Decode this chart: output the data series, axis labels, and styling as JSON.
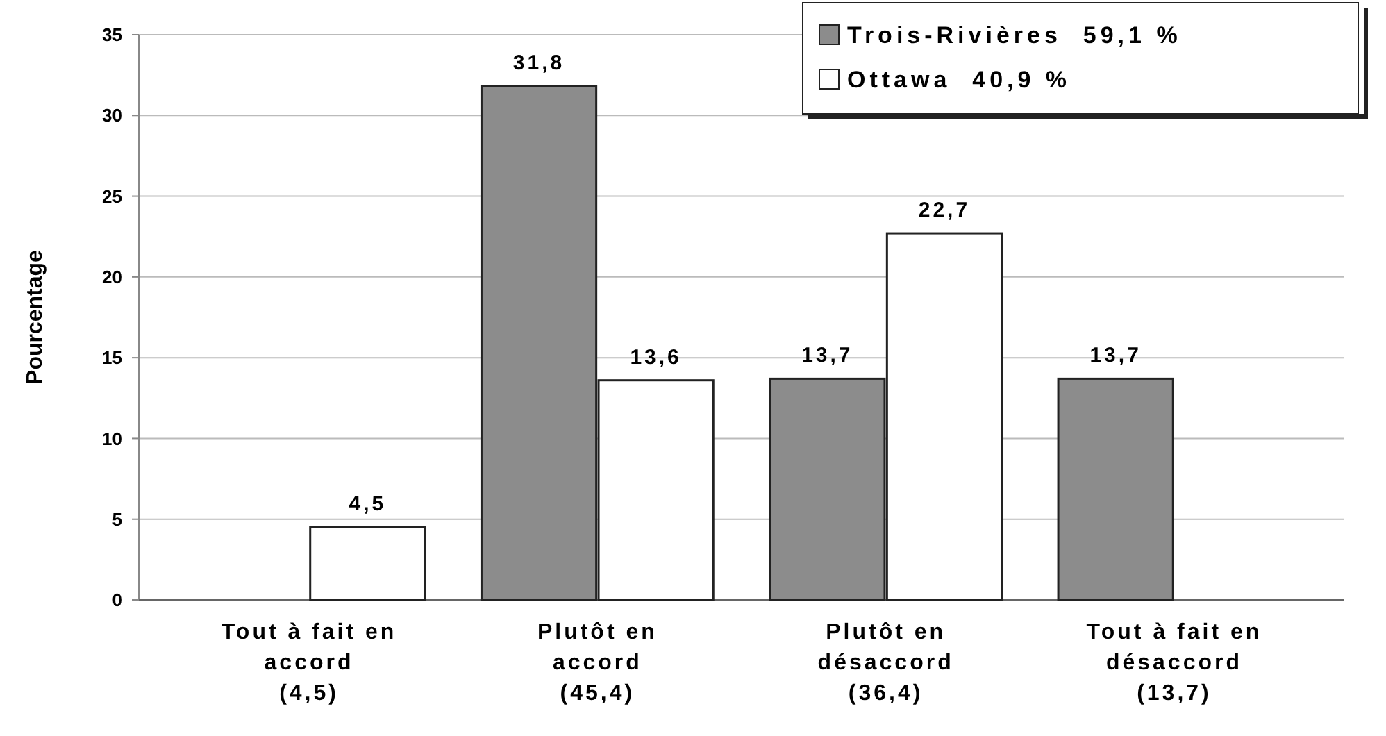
{
  "chart_data": {
    "type": "bar",
    "ylabel": "Pourcentage",
    "categories": [
      "Tout à fait en\naccord\n(4,5)",
      "Plutôt en\naccord\n(45,4)",
      "Plutôt en\ndésaccord\n(36,4)",
      "Tout à fait en\ndésaccord\n(13,7)"
    ],
    "series": [
      {
        "name": "Trois-Rivières  59,1 %",
        "color": "#8c8c8c",
        "values": [
          0,
          31.8,
          13.7,
          13.7
        ],
        "value_labels": [
          null,
          "31,8",
          "13,7",
          "13,7"
        ]
      },
      {
        "name": "Ottawa  40,9 %",
        "color": "#ffffff",
        "values": [
          4.5,
          13.6,
          22.7,
          0
        ],
        "value_labels": [
          "4,5",
          "13,6",
          "22,7",
          null
        ]
      }
    ],
    "ylim": [
      0,
      35
    ],
    "yticks": [
      0,
      5,
      10,
      15,
      20,
      25,
      30,
      35
    ],
    "grid": "y",
    "legend": "top right"
  }
}
